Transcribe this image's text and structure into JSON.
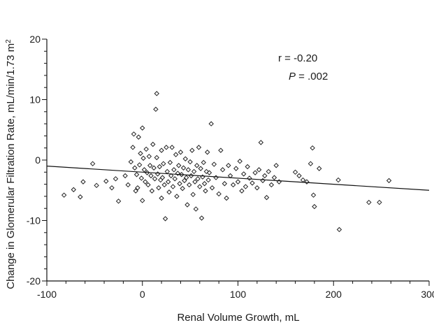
{
  "chart_data": {
    "type": "scatter",
    "title": "",
    "xlabel": "Renal Volume Growth, mL",
    "ylabel": "Change in Glomerular Filtration Rate, mL/min/1.73 m",
    "ylabel_superscript": "2",
    "xlim": [
      -100,
      300
    ],
    "ylim": [
      -20,
      20
    ],
    "x_ticks": [
      -100,
      0,
      100,
      200,
      300
    ],
    "y_ticks": [
      -20,
      -10,
      0,
      10,
      20
    ],
    "x_tick_labels": [
      "-100",
      "0",
      "100",
      "200",
      "300"
    ],
    "y_tick_labels": [
      "-20",
      "-10",
      "0",
      "10",
      "20"
    ],
    "grid": false,
    "annotation": {
      "r_text": "r = -0.20",
      "p_symbol": "P",
      "p_value_text": " = .002"
    },
    "regression_line": {
      "x": [
        -100,
        300
      ],
      "y": [
        -1.0,
        -5.0
      ]
    },
    "series": [
      {
        "marker": "diamond",
        "points": [
          [
            -82,
            -5.8
          ],
          [
            -72,
            -4.9
          ],
          [
            -65,
            -6.1
          ],
          [
            -62,
            -3.6
          ],
          [
            -52,
            -0.6
          ],
          [
            -48,
            -4.2
          ],
          [
            -38,
            -3.5
          ],
          [
            -32,
            -4.6
          ],
          [
            -28,
            -3.1
          ],
          [
            -25,
            -6.8
          ],
          [
            -18,
            -2.6
          ],
          [
            -15,
            -4.1
          ],
          [
            -12,
            -0.3
          ],
          [
            -10,
            2.1
          ],
          [
            -9,
            4.3
          ],
          [
            -8,
            -1.3
          ],
          [
            -7,
            -5.1
          ],
          [
            -6,
            -2.4
          ],
          [
            -5,
            -4.6
          ],
          [
            -4,
            3.8
          ],
          [
            -3,
            -0.8
          ],
          [
            -2,
            1.1
          ],
          [
            -1,
            -3.0
          ],
          [
            0,
            5.3
          ],
          [
            0,
            -6.7
          ],
          [
            1,
            0.3
          ],
          [
            2,
            -1.6
          ],
          [
            3,
            -3.6
          ],
          [
            4,
            1.8
          ],
          [
            5,
            -2.1
          ],
          [
            6,
            -4.1
          ],
          [
            7,
            0.6
          ],
          [
            8,
            -0.9
          ],
          [
            9,
            -2.6
          ],
          [
            10,
            -5.1
          ],
          [
            11,
            2.6
          ],
          [
            12,
            -1.3
          ],
          [
            13,
            -3.1
          ],
          [
            14,
            8.4
          ],
          [
            15,
            11.0
          ],
          [
            15,
            0.4
          ],
          [
            16,
            -2.3
          ],
          [
            17,
            -4.6
          ],
          [
            18,
            -1.1
          ],
          [
            19,
            -3.3
          ],
          [
            20,
            1.6
          ],
          [
            20,
            -6.3
          ],
          [
            21,
            -2.9
          ],
          [
            22,
            -0.6
          ],
          [
            23,
            -4.1
          ],
          [
            24,
            -9.7
          ],
          [
            25,
            2.1
          ],
          [
            26,
            -1.9
          ],
          [
            27,
            -3.6
          ],
          [
            28,
            -5.3
          ],
          [
            29,
            -0.4
          ],
          [
            30,
            -2.6
          ],
          [
            31,
            2.1
          ],
          [
            32,
            -4.4
          ],
          [
            33,
            -1.6
          ],
          [
            34,
            -3.1
          ],
          [
            35,
            0.9
          ],
          [
            36,
            -6.0
          ],
          [
            37,
            -2.2
          ],
          [
            38,
            -0.9
          ],
          [
            39,
            -3.9
          ],
          [
            40,
            1.3
          ],
          [
            41,
            -2.4
          ],
          [
            42,
            -4.7
          ],
          [
            43,
            -1.3
          ],
          [
            44,
            -3.4
          ],
          [
            45,
            0.2
          ],
          [
            46,
            -2.9
          ],
          [
            47,
            -7.4
          ],
          [
            48,
            -1.6
          ],
          [
            49,
            -4.1
          ],
          [
            50,
            -0.3
          ],
          [
            51,
            -2.6
          ],
          [
            52,
            1.6
          ],
          [
            53,
            -5.7
          ],
          [
            54,
            -1.9
          ],
          [
            55,
            -3.6
          ],
          [
            56,
            -8.1
          ],
          [
            57,
            -0.9
          ],
          [
            58,
            -3.1
          ],
          [
            59,
            2.1
          ],
          [
            60,
            -4.4
          ],
          [
            61,
            -1.4
          ],
          [
            62,
            -9.6
          ],
          [
            63,
            -2.8
          ],
          [
            64,
            -0.4
          ],
          [
            65,
            -3.9
          ],
          [
            66,
            -5.1
          ],
          [
            67,
            -1.9
          ],
          [
            68,
            1.3
          ],
          [
            69,
            -3.3
          ],
          [
            70,
            -2.1
          ],
          [
            72,
            6.0
          ],
          [
            73,
            -4.6
          ],
          [
            75,
            -0.7
          ],
          [
            77,
            -2.9
          ],
          [
            80,
            -5.6
          ],
          [
            82,
            1.6
          ],
          [
            84,
            -1.6
          ],
          [
            86,
            -3.9
          ],
          [
            88,
            -6.3
          ],
          [
            90,
            -0.9
          ],
          [
            92,
            -2.6
          ],
          [
            95,
            -4.1
          ],
          [
            98,
            -1.4
          ],
          [
            100,
            -3.6
          ],
          [
            102,
            -0.2
          ],
          [
            104,
            -5.1
          ],
          [
            106,
            -2.3
          ],
          [
            108,
            -4.4
          ],
          [
            110,
            -1.1
          ],
          [
            112,
            -3.0
          ],
          [
            115,
            -3.8
          ],
          [
            118,
            -2.1
          ],
          [
            120,
            -4.6
          ],
          [
            122,
            -1.6
          ],
          [
            124,
            2.9
          ],
          [
            126,
            -3.4
          ],
          [
            128,
            -2.6
          ],
          [
            130,
            -6.2
          ],
          [
            132,
            -1.9
          ],
          [
            135,
            -4.1
          ],
          [
            138,
            -2.9
          ],
          [
            140,
            -0.9
          ],
          [
            143,
            -3.6
          ],
          [
            160,
            -2.0
          ],
          [
            164,
            -2.6
          ],
          [
            168,
            -3.3
          ],
          [
            172,
            -3.6
          ],
          [
            176,
            -0.6
          ],
          [
            178,
            2.0
          ],
          [
            179,
            -5.8
          ],
          [
            180,
            -7.7
          ],
          [
            185,
            -1.4
          ],
          [
            205,
            -3.3
          ],
          [
            206,
            -11.5
          ],
          [
            237,
            -7.0
          ],
          [
            248,
            -7.0
          ],
          [
            258,
            -3.4
          ]
        ]
      }
    ]
  }
}
